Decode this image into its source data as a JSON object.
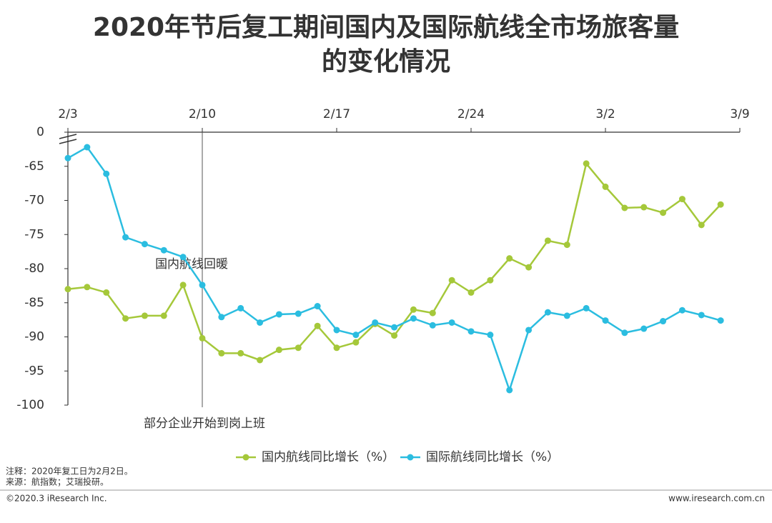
{
  "chart_data": {
    "type": "line",
    "title": "2020年节后复工期间国内及国际航线全市场旅客量",
    "subtitle": "的变化情况",
    "categories": [
      "2/3",
      null,
      null,
      null,
      null,
      null,
      null,
      "2/10",
      null,
      null,
      null,
      null,
      null,
      null,
      "2/17",
      null,
      null,
      null,
      null,
      null,
      null,
      "2/24",
      null,
      null,
      null,
      null,
      null,
      null,
      "3/2",
      null,
      null,
      null,
      null,
      null,
      null,
      "3/9"
    ],
    "series": [
      {
        "name": "国内航线同比增长（%）",
        "color": "#a5c83a",
        "values": [
          -83.0,
          -82.7,
          -83.5,
          -87.3,
          -86.9,
          -86.9,
          -82.4,
          -90.2,
          -92.4,
          -92.4,
          -93.4,
          -91.9,
          -91.6,
          -88.4,
          -91.6,
          -90.8,
          -88.1,
          -89.8,
          -86.0,
          -86.5,
          -81.7,
          -83.5,
          -81.7,
          -78.5,
          -79.8,
          -75.9,
          -76.5,
          -64.6,
          -68.0,
          -71.1,
          -71.0,
          -71.8,
          -69.8,
          -73.6,
          -70.6,
          null
        ]
      },
      {
        "name": "国际航线同比增长（%）",
        "color": "#2bbde0",
        "values": [
          -63.8,
          -62.2,
          -66.1,
          -75.4,
          -76.4,
          -77.3,
          -78.3,
          -82.4,
          -87.1,
          -85.8,
          -87.9,
          -86.7,
          -86.6,
          -85.5,
          -89.0,
          -89.7,
          -87.9,
          -88.6,
          -87.3,
          -88.3,
          -87.9,
          -89.2,
          -89.7,
          -97.8,
          -89.0,
          -86.4,
          -86.9,
          -85.8,
          -87.6,
          -89.4,
          -88.8,
          -87.7,
          -86.1,
          -86.8,
          -87.6,
          null
        ]
      }
    ],
    "ylim": [
      -100,
      -60
    ],
    "yticks": [
      0,
      -65,
      -70,
      -75,
      -80,
      -85,
      -90,
      -95,
      -100
    ],
    "axis_break": true,
    "annotations": [
      {
        "text": "部分企业开始到岗上班",
        "category": "2/10"
      },
      {
        "text": "国内航线回暖",
        "from": "2/17",
        "to": "2/22"
      }
    ],
    "legend": "bottom"
  },
  "footer": {
    "notes": [
      "注释：2020年复工日为2月2日。",
      "来源：航指数；艾瑞投研。"
    ],
    "copyright": "©2020.3 iResearch Inc.",
    "website": "www.iresearch.com.cn"
  }
}
